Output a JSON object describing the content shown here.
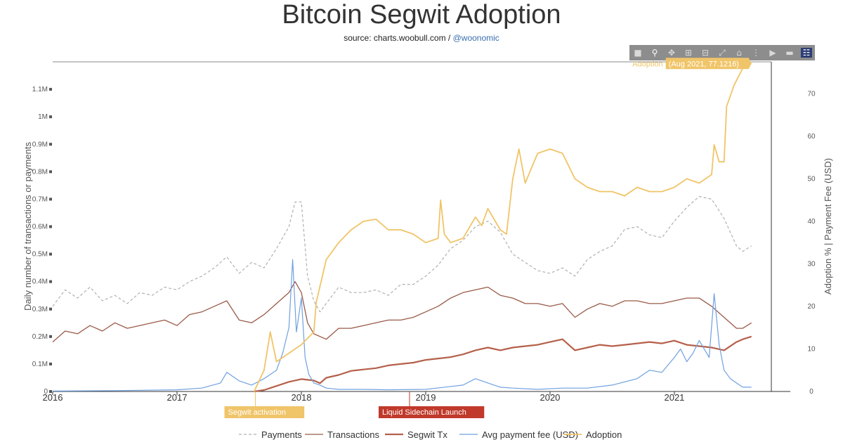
{
  "header": {
    "title": "Bitcoin Segwit Adoption",
    "source_prefix": "source: charts.woobull.com / ",
    "source_link": "@woonomic"
  },
  "toolbar": {
    "icons": [
      "camera-icon",
      "zoom-icon",
      "pan-icon",
      "zoom-in-icon",
      "zoom-out-icon",
      "autoscale-icon",
      "home-icon",
      "spike-lines-icon",
      "hover-closest-icon",
      "hover-compare-icon",
      "plotly-logo-icon"
    ]
  },
  "colors": {
    "payments": "#b0b0b0",
    "transactions": "#9a5a48",
    "segwit": "#b5604a",
    "fee": "#6fa0e0",
    "adoption": "#f0c468",
    "segwit_activation_box": "#f0c468",
    "liquid_box": "#c0392b"
  },
  "chart_data": {
    "type": "line",
    "title": "Bitcoin Segwit Adoption",
    "ylabel": "Daily number of transactions or payments",
    "y2label": "Adoption % | Payment Fee (USD)",
    "xlim": [
      2016.0,
      2021.78
    ],
    "ylim": [
      0,
      1200000
    ],
    "y2lim": [
      0,
      77.5
    ],
    "x_ticks": [
      "2016",
      "2017",
      "2018",
      "2019",
      "2020",
      "2021"
    ],
    "y_ticks": [
      "0",
      "0.1M",
      "0.2M",
      "0.3M",
      "0.4M",
      "0.5M",
      "0.6M",
      "0.7M",
      "0.8M",
      "0.9M",
      "1M",
      "1.1M"
    ],
    "y2_ticks": [
      "0",
      "10",
      "20",
      "30",
      "40",
      "50",
      "60",
      "70"
    ],
    "legend_position": "bottom",
    "grid": false,
    "series": [
      {
        "name": "Payments",
        "axis": "left",
        "style": "dashed",
        "x": [
          2016.0,
          2016.1,
          2016.2,
          2016.3,
          2016.4,
          2016.5,
          2016.6,
          2016.7,
          2016.8,
          2016.9,
          2017.0,
          2017.1,
          2017.2,
          2017.3,
          2017.4,
          2017.5,
          2017.6,
          2017.7,
          2017.8,
          2017.85,
          2017.9,
          2017.95,
          2018.0,
          2018.05,
          2018.1,
          2018.15,
          2018.2,
          2018.3,
          2018.4,
          2018.5,
          2018.6,
          2018.7,
          2018.8,
          2018.9,
          2019.0,
          2019.1,
          2019.2,
          2019.3,
          2019.4,
          2019.5,
          2019.6,
          2019.7,
          2019.8,
          2019.9,
          2020.0,
          2020.1,
          2020.2,
          2020.3,
          2020.4,
          2020.5,
          2020.6,
          2020.7,
          2020.8,
          2020.9,
          2021.0,
          2021.1,
          2021.2,
          2021.3,
          2021.4,
          2021.5,
          2021.55,
          2021.62
        ],
        "y": [
          310000,
          370000,
          340000,
          380000,
          330000,
          350000,
          320000,
          360000,
          350000,
          380000,
          370000,
          400000,
          420000,
          450000,
          490000,
          430000,
          470000,
          450000,
          520000,
          560000,
          600000,
          690000,
          690000,
          420000,
          330000,
          290000,
          320000,
          380000,
          360000,
          360000,
          370000,
          350000,
          390000,
          390000,
          420000,
          460000,
          520000,
          550000,
          600000,
          620000,
          580000,
          500000,
          470000,
          440000,
          430000,
          450000,
          420000,
          480000,
          510000,
          530000,
          590000,
          600000,
          570000,
          560000,
          620000,
          670000,
          710000,
          700000,
          630000,
          530000,
          510000,
          530000
        ]
      },
      {
        "name": "Transactions",
        "axis": "left",
        "style": "solid",
        "x": [
          2016.0,
          2016.1,
          2016.2,
          2016.3,
          2016.4,
          2016.5,
          2016.6,
          2016.7,
          2016.8,
          2016.9,
          2017.0,
          2017.1,
          2017.2,
          2017.3,
          2017.4,
          2017.5,
          2017.6,
          2017.7,
          2017.8,
          2017.9,
          2017.95,
          2018.0,
          2018.05,
          2018.1,
          2018.2,
          2018.3,
          2018.4,
          2018.5,
          2018.6,
          2018.7,
          2018.8,
          2018.9,
          2019.0,
          2019.1,
          2019.2,
          2019.3,
          2019.4,
          2019.5,
          2019.6,
          2019.7,
          2019.8,
          2019.9,
          2020.0,
          2020.1,
          2020.2,
          2020.3,
          2020.4,
          2020.5,
          2020.6,
          2020.7,
          2020.8,
          2020.9,
          2021.0,
          2021.1,
          2021.2,
          2021.3,
          2021.4,
          2021.5,
          2021.55,
          2021.62
        ],
        "y": [
          180000,
          220000,
          210000,
          240000,
          220000,
          250000,
          230000,
          240000,
          250000,
          260000,
          240000,
          280000,
          290000,
          310000,
          330000,
          260000,
          250000,
          280000,
          320000,
          360000,
          400000,
          360000,
          250000,
          210000,
          190000,
          230000,
          230000,
          240000,
          250000,
          260000,
          260000,
          270000,
          290000,
          310000,
          340000,
          360000,
          370000,
          380000,
          350000,
          340000,
          320000,
          320000,
          310000,
          320000,
          270000,
          300000,
          320000,
          310000,
          330000,
          330000,
          320000,
          320000,
          330000,
          340000,
          340000,
          310000,
          270000,
          230000,
          230000,
          250000
        ]
      },
      {
        "name": "Segwit Tx",
        "axis": "left",
        "style": "solid-thick",
        "x": [
          2017.62,
          2017.7,
          2017.8,
          2017.9,
          2018.0,
          2018.1,
          2018.15,
          2018.2,
          2018.3,
          2018.4,
          2018.5,
          2018.6,
          2018.7,
          2018.8,
          2018.9,
          2019.0,
          2019.1,
          2019.2,
          2019.3,
          2019.4,
          2019.5,
          2019.6,
          2019.7,
          2019.8,
          2019.9,
          2020.0,
          2020.1,
          2020.2,
          2020.3,
          2020.4,
          2020.5,
          2020.6,
          2020.7,
          2020.8,
          2020.9,
          2021.0,
          2021.1,
          2021.2,
          2021.3,
          2021.4,
          2021.5,
          2021.55,
          2021.62
        ],
        "y": [
          0,
          5000,
          20000,
          35000,
          45000,
          40000,
          30000,
          50000,
          60000,
          75000,
          80000,
          85000,
          95000,
          100000,
          105000,
          115000,
          120000,
          125000,
          135000,
          150000,
          160000,
          150000,
          160000,
          165000,
          170000,
          180000,
          190000,
          150000,
          160000,
          170000,
          165000,
          170000,
          175000,
          180000,
          175000,
          185000,
          170000,
          165000,
          160000,
          150000,
          180000,
          190000,
          200000
        ]
      },
      {
        "name": "Avg payment fee (USD)",
        "axis": "right",
        "style": "solid",
        "x": [
          2016.0,
          2016.5,
          2017.0,
          2017.2,
          2017.35,
          2017.4,
          2017.5,
          2017.6,
          2017.7,
          2017.8,
          2017.85,
          2017.9,
          2017.93,
          2017.96,
          2018.0,
          2018.03,
          2018.06,
          2018.1,
          2018.15,
          2018.2,
          2018.3,
          2018.5,
          2018.7,
          2019.0,
          2019.3,
          2019.4,
          2019.5,
          2019.6,
          2019.7,
          2019.9,
          2020.1,
          2020.3,
          2020.5,
          2020.7,
          2020.8,
          2020.9,
          2021.0,
          2021.05,
          2021.1,
          2021.15,
          2021.2,
          2021.28,
          2021.32,
          2021.36,
          2021.4,
          2021.45,
          2021.5,
          2021.55,
          2021.62
        ],
        "y": [
          0.1,
          0.2,
          0.4,
          0.8,
          2.0,
          4.5,
          2.5,
          1.5,
          3.0,
          5.0,
          9.0,
          15.0,
          31.0,
          14.0,
          22.0,
          8.0,
          4.0,
          2.0,
          1.5,
          0.8,
          0.5,
          0.5,
          0.4,
          0.5,
          1.5,
          3.0,
          2.0,
          1.0,
          0.8,
          0.5,
          0.8,
          0.8,
          1.5,
          3.0,
          5.0,
          4.5,
          8.0,
          10.0,
          7.0,
          9.0,
          12.0,
          8.0,
          23.0,
          11.0,
          5.0,
          3.0,
          2.0,
          1.0,
          1.0
        ]
      },
      {
        "name": "Adoption",
        "axis": "right",
        "style": "solid",
        "x": [
          2017.62,
          2017.7,
          2017.75,
          2017.8,
          2017.9,
          2017.95,
          2018.0,
          2018.1,
          2018.12,
          2018.2,
          2018.3,
          2018.4,
          2018.5,
          2018.6,
          2018.7,
          2018.8,
          2018.9,
          2019.0,
          2019.1,
          2019.12,
          2019.15,
          2019.2,
          2019.3,
          2019.4,
          2019.45,
          2019.5,
          2019.6,
          2019.65,
          2019.7,
          2019.75,
          2019.8,
          2019.9,
          2020.0,
          2020.1,
          2020.2,
          2020.3,
          2020.4,
          2020.5,
          2020.6,
          2020.7,
          2020.8,
          2020.9,
          2021.0,
          2021.1,
          2021.2,
          2021.3,
          2021.32,
          2021.36,
          2021.4,
          2021.42,
          2021.48,
          2021.55,
          2021.62
        ],
        "y": [
          0,
          5.0,
          14.0,
          7.0,
          9.0,
          10.0,
          11.0,
          14.0,
          21.0,
          31.0,
          35.0,
          38.0,
          40.0,
          40.5,
          38.0,
          38.0,
          37.0,
          35.0,
          36.0,
          45.0,
          37.0,
          35.0,
          36.0,
          41.0,
          39.0,
          43.0,
          38.0,
          37.0,
          50.0,
          57.0,
          49.0,
          56.0,
          57.0,
          56.0,
          50.0,
          48.0,
          47.0,
          47.0,
          46.0,
          48.0,
          47.0,
          47.0,
          48.0,
          50.0,
          49.0,
          51.0,
          58.0,
          54.0,
          54.0,
          67.0,
          72.0,
          76.0,
          77.1216
        ]
      }
    ],
    "annotations": [
      {
        "label": "Segwit activation",
        "x": 2017.63
      },
      {
        "label": "Liquid Sidechain Launch",
        "x": 2018.87
      }
    ],
    "hover": {
      "series": "Adoption",
      "label": "(Aug 2021, 77.1216)",
      "x": 2021.62,
      "y": 77.1216
    }
  }
}
